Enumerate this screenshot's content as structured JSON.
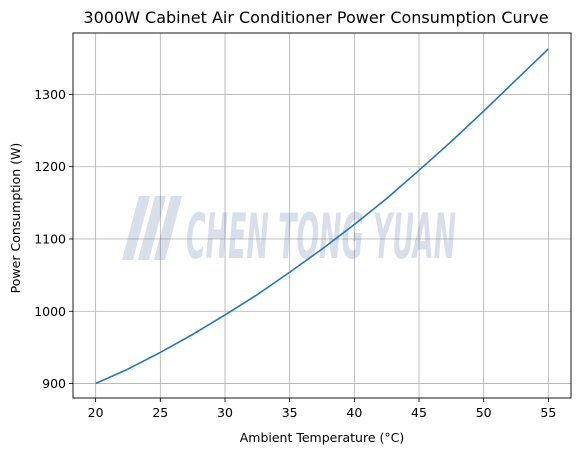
{
  "chart_data": {
    "type": "line",
    "title": "3000W Cabinet Air Conditioner Power Consumption Curve",
    "xlabel": "Ambient Temperature (°C)",
    "ylabel": "Power Consumption (W)",
    "xlim": [
      18.25,
      56.75
    ],
    "ylim": [
      880,
      1385
    ],
    "xticks": [
      20,
      25,
      30,
      35,
      40,
      45,
      50,
      55
    ],
    "yticks": [
      900,
      1000,
      1100,
      1200,
      1300
    ],
    "grid": true,
    "series": [
      {
        "color": "#1f77b4",
        "x": [
          20,
          22.5,
          25,
          27.5,
          30,
          32.5,
          35,
          37.5,
          40,
          42.5,
          45,
          47.5,
          50,
          52.5,
          55
        ],
        "y": [
          900,
          920,
          943,
          968,
          995,
          1023,
          1054,
          1086,
          1120,
          1156,
          1195,
          1235,
          1277,
          1320,
          1363
        ]
      }
    ]
  },
  "watermark": {
    "text": "CHEN TONG YUAN",
    "color": "#1a3a8a"
  }
}
